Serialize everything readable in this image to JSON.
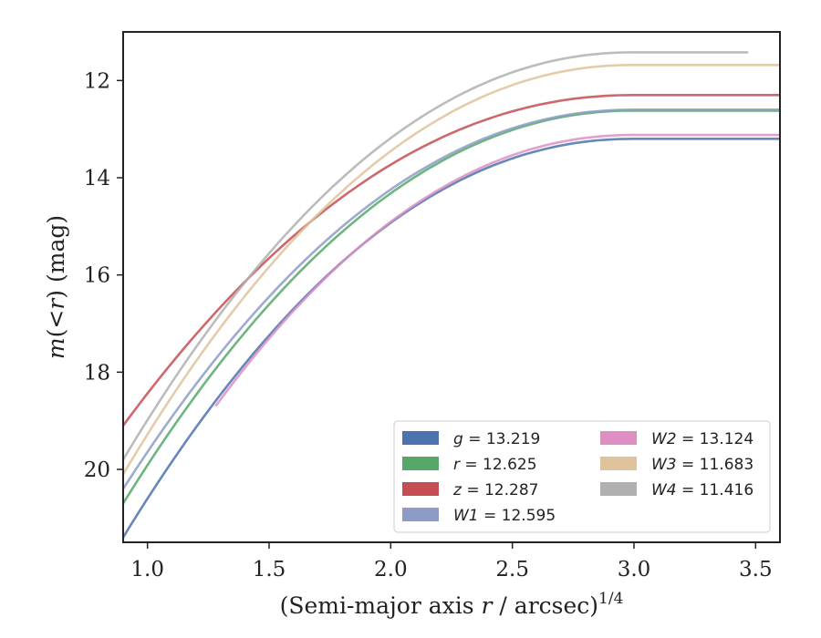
{
  "chart_data": {
    "type": "line",
    "title": "",
    "xlabel_main": "(Semi-major axis ",
    "xlabel_var": "r",
    "xlabel_rest": " / arcsec)",
    "xlabel_exp": "1/4",
    "ylabel_m": "m",
    "ylabel_paren_open": "(<",
    "ylabel_r": "r",
    "ylabel_rest": ") (mag)",
    "xlim": [
      0.9,
      3.6
    ],
    "ylim": [
      21.5,
      11.0
    ],
    "y_inverted": true,
    "xticks": [
      1.0,
      1.5,
      2.0,
      2.5,
      3.0,
      3.5
    ],
    "xtick_labels": [
      "1.0",
      "1.5",
      "2.0",
      "2.5",
      "3.0",
      "3.5"
    ],
    "yticks": [
      12,
      14,
      16,
      18,
      20
    ],
    "ytick_labels": [
      "12",
      "14",
      "16",
      "18",
      "20"
    ],
    "grid": false,
    "legend_placement": "lower-right",
    "series": [
      {
        "band": "g",
        "value": "13.219",
        "color": "#4c72b0",
        "start_x": 0.9,
        "start_y": 21.4,
        "plateau": 13.2,
        "end_x": 3.6
      },
      {
        "band": "r",
        "value": "12.625",
        "color": "#55a868",
        "start_x": 0.9,
        "start_y": 20.7,
        "plateau": 12.62,
        "end_x": 3.6
      },
      {
        "band": "z",
        "value": "12.287",
        "color": "#c44e52",
        "start_x": 0.9,
        "start_y": 19.1,
        "plateau": 12.3,
        "end_x": 3.6
      },
      {
        "band": "W1",
        "value": "12.595",
        "color": "#8c9cc4",
        "start_x": 0.9,
        "start_y": 20.4,
        "plateau": 12.6,
        "end_x": 3.6
      },
      {
        "band": "W2",
        "value": "13.124",
        "color": "#dd8fc4",
        "start_x": 1.28,
        "start_y": 18.7,
        "plateau": 13.12,
        "end_x": 3.6
      },
      {
        "band": "W3",
        "value": "11.683",
        "color": "#dfc39c",
        "start_x": 0.9,
        "start_y": 20.1,
        "plateau": 11.68,
        "end_x": 3.6
      },
      {
        "band": "W4",
        "value": "11.416",
        "color": "#b0b0b0",
        "start_x": 0.9,
        "start_y": 19.8,
        "plateau": 11.42,
        "end_x": 3.47
      }
    ]
  },
  "legend": {
    "equals": " = "
  },
  "colors": {
    "axes": "#222222",
    "background": "#ffffff"
  }
}
